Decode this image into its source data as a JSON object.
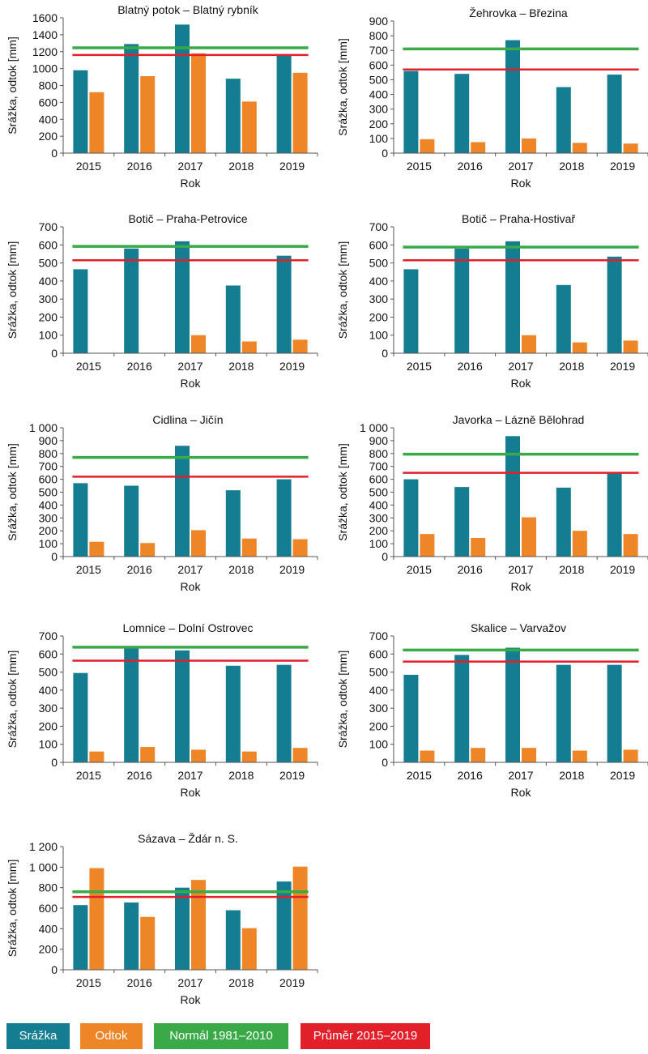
{
  "colors": {
    "srazka": "#157d91",
    "odtok": "#ee8526",
    "normal": "#3aaa48",
    "prumer": "#e2202a"
  },
  "legend": {
    "srazka": "Srážka",
    "odtok": "Odtok",
    "normal": "Normál 1981–2010",
    "prumer": "Průměr 2015–2019"
  },
  "chart_data": [
    {
      "type": "bar",
      "title": "Blatný potok – Blatný rybník",
      "xlabel": "Rok",
      "ylabel": "Srážka, odtok [mm]",
      "categories": [
        "2015",
        "2016",
        "2017",
        "2018",
        "2019"
      ],
      "ylim": [
        0,
        1600
      ],
      "yticks": [
        "0",
        "200",
        "400",
        "600",
        "800",
        "1000",
        "1200",
        "1400",
        "1600"
      ],
      "series": [
        {
          "name": "Srážka",
          "values": [
            980,
            1290,
            1520,
            880,
            1160
          ]
        },
        {
          "name": "Odtok",
          "values": [
            720,
            910,
            1180,
            610,
            950
          ]
        }
      ],
      "lines": [
        {
          "name": "Normál 1981–2010",
          "value": 1245
        },
        {
          "name": "Průměr 2015–2019",
          "value": 1160
        }
      ]
    },
    {
      "type": "bar",
      "title": "Žehrovka – Březina",
      "xlabel": "Rok",
      "ylabel": "Srážka, odtok [mm]",
      "categories": [
        "2015",
        "2016",
        "2017",
        "2018",
        "2019"
      ],
      "ylim": [
        0,
        900
      ],
      "yticks": [
        "0",
        "100",
        "200",
        "300",
        "400",
        "500",
        "600",
        "700",
        "800",
        "900"
      ],
      "series": [
        {
          "name": "Srážka",
          "values": [
            560,
            540,
            770,
            450,
            535
          ]
        },
        {
          "name": "Odtok",
          "values": [
            95,
            75,
            100,
            70,
            65
          ]
        }
      ],
      "lines": [
        {
          "name": "Normál 1981–2010",
          "value": 710
        },
        {
          "name": "Průměr 2015–2019",
          "value": 570
        }
      ]
    },
    {
      "type": "bar",
      "title": "Botič – Praha-Petrovice",
      "xlabel": "Rok",
      "ylabel": "Srážka, odtok [mm]",
      "categories": [
        "2015",
        "2016",
        "2017",
        "2018",
        "2019"
      ],
      "ylim": [
        0,
        700
      ],
      "yticks": [
        "0",
        "100",
        "200",
        "300",
        "400",
        "500",
        "600",
        "700"
      ],
      "series": [
        {
          "name": "Srážka",
          "values": [
            465,
            580,
            620,
            375,
            540
          ]
        },
        {
          "name": "Odtok",
          "values": [
            0,
            0,
            100,
            65,
            75
          ]
        }
      ],
      "lines": [
        {
          "name": "Normál 1981–2010",
          "value": 592
        },
        {
          "name": "Průměr 2015–2019",
          "value": 515
        }
      ]
    },
    {
      "type": "bar",
      "title": "Botič – Praha-Hostivař",
      "xlabel": "Rok",
      "ylabel": "Srážka, odtok [mm]",
      "categories": [
        "2015",
        "2016",
        "2017",
        "2018",
        "2019"
      ],
      "ylim": [
        0,
        700
      ],
      "yticks": [
        "0",
        "100",
        "200",
        "300",
        "400",
        "500",
        "600",
        "700"
      ],
      "series": [
        {
          "name": "Srážka",
          "values": [
            465,
            580,
            620,
            378,
            535
          ]
        },
        {
          "name": "Odtok",
          "values": [
            0,
            0,
            100,
            60,
            70
          ]
        }
      ],
      "lines": [
        {
          "name": "Normál 1981–2010",
          "value": 588
        },
        {
          "name": "Průměr 2015–2019",
          "value": 515
        }
      ]
    },
    {
      "type": "bar",
      "title": "Cidlina – Jičín",
      "xlabel": "Rok",
      "ylabel": "Srážka, odtok [mm]",
      "categories": [
        "2015",
        "2016",
        "2017",
        "2018",
        "2019"
      ],
      "ylim": [
        0,
        1000
      ],
      "yticks": [
        "0",
        "100",
        "200",
        "300",
        "400",
        "500",
        "600",
        "700",
        "800",
        "900",
        "1 000"
      ],
      "series": [
        {
          "name": "Srážka",
          "values": [
            570,
            550,
            860,
            515,
            600
          ]
        },
        {
          "name": "Odtok",
          "values": [
            115,
            105,
            205,
            140,
            135
          ]
        }
      ],
      "lines": [
        {
          "name": "Normál 1981–2010",
          "value": 770
        },
        {
          "name": "Průměr 2015–2019",
          "value": 620
        }
      ]
    },
    {
      "type": "bar",
      "title": "Javorka – Lázně Bělohrad",
      "xlabel": "Rok",
      "ylabel": "Srážka, odtok [mm]",
      "categories": [
        "2015",
        "2016",
        "2017",
        "2018",
        "2019"
      ],
      "ylim": [
        0,
        1000
      ],
      "yticks": [
        "0",
        "100",
        "200",
        "300",
        "400",
        "500",
        "600",
        "700",
        "800",
        "900",
        "1 000"
      ],
      "series": [
        {
          "name": "Srážka",
          "values": [
            600,
            540,
            935,
            535,
            650
          ]
        },
        {
          "name": "Odtok",
          "values": [
            175,
            145,
            305,
            200,
            175
          ]
        }
      ],
      "lines": [
        {
          "name": "Normál 1981–2010",
          "value": 795
        },
        {
          "name": "Průměr 2015–2019",
          "value": 650
        }
      ]
    },
    {
      "type": "bar",
      "title": "Lomnice – Dolní Ostrovec",
      "xlabel": "Rok",
      "ylabel": "Srážka, odtok [mm]",
      "categories": [
        "2015",
        "2016",
        "2017",
        "2018",
        "2019"
      ],
      "ylim": [
        0,
        700
      ],
      "yticks": [
        "0",
        "100",
        "200",
        "300",
        "400",
        "500",
        "600",
        "700"
      ],
      "series": [
        {
          "name": "Srážka",
          "values": [
            495,
            640,
            620,
            535,
            540
          ]
        },
        {
          "name": "Odtok",
          "values": [
            60,
            85,
            70,
            60,
            80
          ]
        }
      ],
      "lines": [
        {
          "name": "Normál 1981–2010",
          "value": 638
        },
        {
          "name": "Průměr 2015–2019",
          "value": 563
        }
      ]
    },
    {
      "type": "bar",
      "title": "Skalice – Varvažov",
      "xlabel": "Rok",
      "ylabel": "Srážka, odtok [mm]",
      "categories": [
        "2015",
        "2016",
        "2017",
        "2018",
        "2019"
      ],
      "ylim": [
        0,
        700
      ],
      "yticks": [
        "0",
        "100",
        "200",
        "300",
        "400",
        "500",
        "600",
        "700"
      ],
      "series": [
        {
          "name": "Srážka",
          "values": [
            485,
            595,
            635,
            540,
            540
          ]
        },
        {
          "name": "Odtok",
          "values": [
            65,
            80,
            80,
            65,
            70
          ]
        }
      ],
      "lines": [
        {
          "name": "Normál 1981–2010",
          "value": 622
        },
        {
          "name": "Průměr 2015–2019",
          "value": 558
        }
      ]
    },
    {
      "type": "bar",
      "title": "Sázava – Ždár n. S.",
      "xlabel": "Rok",
      "ylabel": "Srážka, odtok [mm]",
      "categories": [
        "2015",
        "2016",
        "2017",
        "2018",
        "2019"
      ],
      "ylim": [
        0,
        1200
      ],
      "yticks": [
        "0",
        "200",
        "400",
        "600",
        "800",
        "1 000",
        "1 200"
      ],
      "series": [
        {
          "name": "Srážka",
          "values": [
            630,
            655,
            800,
            580,
            860
          ]
        },
        {
          "name": "Odtok",
          "values": [
            990,
            515,
            875,
            405,
            1005
          ]
        }
      ],
      "lines": [
        {
          "name": "Normál 1981–2010",
          "value": 760
        },
        {
          "name": "Průměr 2015–2019",
          "value": 710
        }
      ]
    }
  ]
}
